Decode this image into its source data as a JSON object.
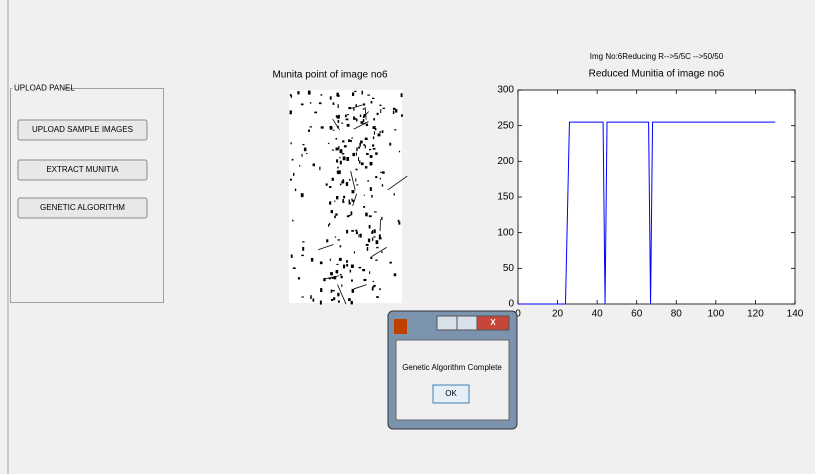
{
  "upload_panel": {
    "title": "UPLOAD PANEL",
    "buttons": [
      "UPLOAD SAMPLE IMAGES",
      "EXTRACT MUNITIA",
      "GENETIC ALGORITHM"
    ]
  },
  "image_panel": {
    "title": "Munita point of image no6"
  },
  "chart_data": {
    "type": "line",
    "subtitle": "Img No:6Reducing R-->5/5C -->50/50",
    "title": "Reduced Munitia of image no6",
    "x": [
      0,
      24,
      26,
      43,
      44,
      45,
      66,
      67,
      68,
      130
    ],
    "series": [
      {
        "color": "#0000ff",
        "values": [
          0,
          0,
          255,
          255,
          0,
          255,
          255,
          0,
          255,
          255
        ]
      }
    ],
    "xlim": [
      0,
      140
    ],
    "ylim": [
      0,
      300
    ],
    "xticks": [
      0,
      20,
      40,
      60,
      80,
      100,
      120,
      140
    ],
    "yticks": [
      0,
      50,
      100,
      150,
      200,
      250,
      300
    ]
  },
  "dialog": {
    "message": "Genetic Algorithm Complete",
    "button": "OK"
  }
}
